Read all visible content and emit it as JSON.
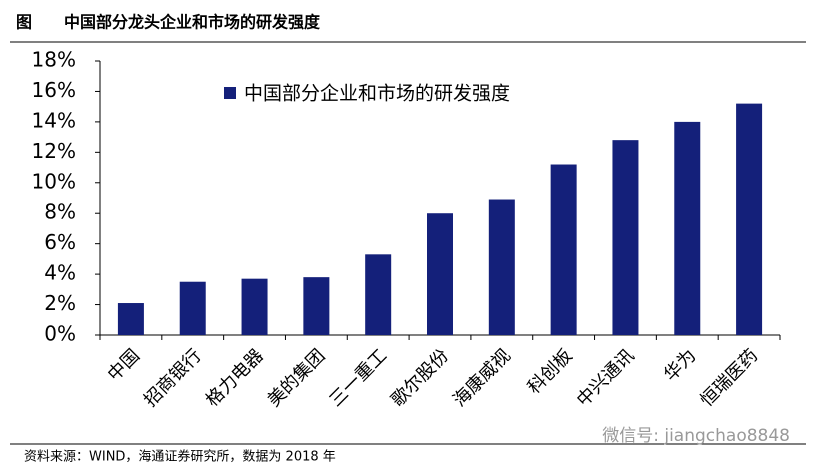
{
  "figure_label": "图",
  "title": "中国部分龙头企业和市场的研发强度",
  "source": "资料来源：WIND，海通证券研究所，数据为 2018 年",
  "watermark": "微信号: jiangchao8848",
  "chart_data": {
    "type": "bar",
    "categories": [
      "中国",
      "招商银行",
      "格力电器",
      "美的集团",
      "三一重工",
      "歌尔股份",
      "海康威视",
      "科创板",
      "中兴通讯",
      "华为",
      "恒瑞医药"
    ],
    "series": [
      {
        "name": "中国部分企业和市场的研发强度",
        "color": "#14207a",
        "values": [
          2.1,
          3.5,
          3.7,
          3.8,
          5.3,
          8.0,
          8.9,
          11.2,
          12.8,
          14.0,
          15.2
        ]
      }
    ],
    "ylim": [
      0,
      18
    ],
    "yticks": [
      {
        "value": 0,
        "label": "0%"
      },
      {
        "value": 2,
        "label": "2%"
      },
      {
        "value": 4,
        "label": "4%"
      },
      {
        "value": 6,
        "label": "6%"
      },
      {
        "value": 8,
        "label": "8%"
      },
      {
        "value": 10,
        "label": "10%"
      },
      {
        "value": 12,
        "label": "12%"
      },
      {
        "value": 14,
        "label": "14%"
      },
      {
        "value": 16,
        "label": "16%"
      },
      {
        "value": 18,
        "label": "18%"
      }
    ],
    "grid": false,
    "legend": "top-left"
  }
}
